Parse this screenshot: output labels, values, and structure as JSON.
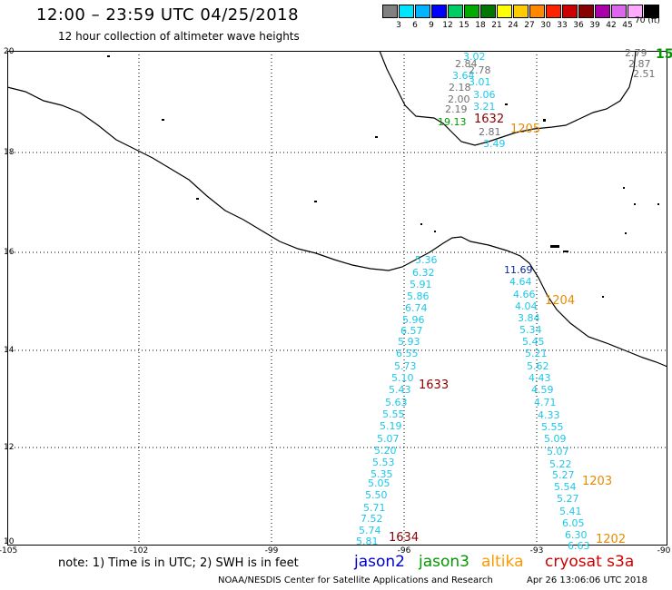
{
  "title": "12:00 – 23:59 UTC 04/25/2018",
  "subtitle": "12 hour collection of altimeter wave heights",
  "legend": {
    "unit": "70 (ft)",
    "colors": [
      "#808080",
      "#00e5ff",
      "#00b4ff",
      "#0000ff",
      "#00cc66",
      "#00aa00",
      "#007700",
      "#ffff00",
      "#ffcc00",
      "#ff8800",
      "#ff2200",
      "#cc0000",
      "#880000",
      "#aa00aa",
      "#dd66ee",
      "#ffaaff",
      "#000000"
    ],
    "labels": [
      "3",
      "6",
      "9",
      "12",
      "15",
      "18",
      "21",
      "24",
      "27",
      "30",
      "33",
      "36",
      "39",
      "42",
      "45"
    ]
  },
  "lat_labels": [
    "20",
    "18",
    "16",
    "14",
    "12",
    "10"
  ],
  "lon_labels": [
    "-105",
    "-102",
    "-99",
    "-96",
    "-93",
    "-90"
  ],
  "colors": {
    "cyan": "#1cc8e8",
    "gray": "#707070",
    "green": "#009900",
    "blue": "#0a2a9a",
    "orange": "#e68a00",
    "darkred": "#8b0000"
  },
  "wave_points": [
    {
      "t": "2.79",
      "c": "gray"
    },
    {
      "t": "15",
      "c": "green"
    },
    {
      "t": "2.87",
      "c": "gray"
    },
    {
      "t": "2.51",
      "c": "gray"
    },
    {
      "t": "3.02",
      "c": "cyan"
    },
    {
      "t": "2.84",
      "c": "gray"
    },
    {
      "t": "2.78",
      "c": "gray"
    },
    {
      "t": "3.64",
      "c": "cyan"
    },
    {
      "t": "3.01",
      "c": "cyan"
    },
    {
      "t": "2.18",
      "c": "gray"
    },
    {
      "t": "3.06",
      "c": "cyan"
    },
    {
      "t": "2.00",
      "c": "gray"
    },
    {
      "t": "3.21",
      "c": "cyan"
    },
    {
      "t": "2.19",
      "c": "gray"
    },
    {
      "t": "19.13",
      "c": "green"
    },
    {
      "t": "2.81",
      "c": "gray"
    },
    {
      "t": "3.49",
      "c": "cyan"
    },
    {
      "t": "5.36",
      "c": "cyan"
    },
    {
      "t": "6.32",
      "c": "cyan"
    },
    {
      "t": "5.91",
      "c": "cyan"
    },
    {
      "t": "5.86",
      "c": "cyan"
    },
    {
      "t": "6.74",
      "c": "cyan"
    },
    {
      "t": "5.96",
      "c": "cyan"
    },
    {
      "t": "6.57",
      "c": "cyan"
    },
    {
      "t": "5.93",
      "c": "cyan"
    },
    {
      "t": "6.55",
      "c": "cyan"
    },
    {
      "t": "5.73",
      "c": "cyan"
    },
    {
      "t": "5.10",
      "c": "cyan"
    },
    {
      "t": "5.43",
      "c": "cyan"
    },
    {
      "t": "5.63",
      "c": "cyan"
    },
    {
      "t": "5.55",
      "c": "cyan"
    },
    {
      "t": "5.19",
      "c": "cyan"
    },
    {
      "t": "5.07",
      "c": "cyan"
    },
    {
      "t": "5.20",
      "c": "cyan"
    },
    {
      "t": "5.53",
      "c": "cyan"
    },
    {
      "t": "5.35",
      "c": "cyan"
    },
    {
      "t": "5.05",
      "c": "cyan"
    },
    {
      "t": "5.50",
      "c": "cyan"
    },
    {
      "t": "5.71",
      "c": "cyan"
    },
    {
      "t": "7.52",
      "c": "cyan"
    },
    {
      "t": "5.74",
      "c": "cyan"
    },
    {
      "t": "5.81",
      "c": "cyan"
    },
    {
      "t": "11.69",
      "c": "blue"
    },
    {
      "t": "4.64",
      "c": "cyan"
    },
    {
      "t": "4.66",
      "c": "cyan"
    },
    {
      "t": "4.04",
      "c": "cyan"
    },
    {
      "t": "3.84",
      "c": "cyan"
    },
    {
      "t": "5.34",
      "c": "cyan"
    },
    {
      "t": "5.45",
      "c": "cyan"
    },
    {
      "t": "5.21",
      "c": "cyan"
    },
    {
      "t": "5.62",
      "c": "cyan"
    },
    {
      "t": "4.43",
      "c": "cyan"
    },
    {
      "t": "4.59",
      "c": "cyan"
    },
    {
      "t": "4.71",
      "c": "cyan"
    },
    {
      "t": "4.33",
      "c": "cyan"
    },
    {
      "t": "5.55",
      "c": "cyan"
    },
    {
      "t": "5.09",
      "c": "cyan"
    },
    {
      "t": "5.07",
      "c": "cyan"
    },
    {
      "t": "5.22",
      "c": "cyan"
    },
    {
      "t": "5.27",
      "c": "cyan"
    },
    {
      "t": "5.54",
      "c": "cyan"
    },
    {
      "t": "5.27",
      "c": "cyan"
    },
    {
      "t": "5.41",
      "c": "cyan"
    },
    {
      "t": "6.05",
      "c": "cyan"
    },
    {
      "t": "6.30",
      "c": "cyan"
    },
    {
      "t": "6.63",
      "c": "cyan"
    }
  ],
  "track_times": [
    {
      "t": "1632",
      "c": "darkred"
    },
    {
      "t": "1205",
      "c": "orange"
    },
    {
      "t": "1204",
      "c": "orange"
    },
    {
      "t": "1633",
      "c": "darkred"
    },
    {
      "t": "1203",
      "c": "orange"
    },
    {
      "t": "1634",
      "c": "darkred"
    },
    {
      "t": "1202",
      "c": "orange"
    }
  ],
  "note": "note:  1) Time is in UTC;  2) SWH is in feet",
  "satellites": [
    {
      "name": "jason2",
      "color": "#0000cc"
    },
    {
      "name": "jason3",
      "color": "#009900"
    },
    {
      "name": "altika",
      "color": "#ff9900"
    },
    {
      "name": "cryosat s3a",
      "color": "#cc0000"
    }
  ],
  "credit": "NOAA/NESDIS Center for Satellite Applications and Research",
  "timestamp": "Apr 26 13:06:06 UTC 2018"
}
